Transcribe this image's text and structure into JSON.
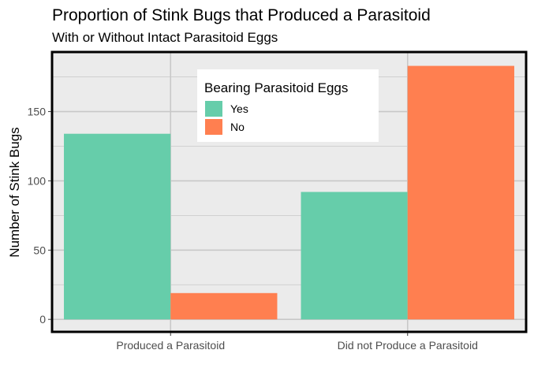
{
  "chart_data": {
    "type": "bar",
    "title": "Proportion of Stink Bugs that Produced a Parasitoid",
    "subtitle": "With or Without Intact Parasitoid Eggs",
    "xlabel": "",
    "ylabel": "Number of Stink Bugs",
    "categories": [
      "Produced a Parasitoid",
      "Did not Produce a Parasitoid"
    ],
    "series": [
      {
        "name": "Yes",
        "values": [
          134,
          92
        ],
        "color": "#66cdaa"
      },
      {
        "name": "No",
        "values": [
          19,
          183
        ],
        "color": "#ff7f50"
      }
    ],
    "yticks": [
      0,
      50,
      100,
      150
    ],
    "ylim": [
      -9,
      193
    ],
    "legend": {
      "title": "Bearing Parasitoid Eggs",
      "position": "top-center"
    },
    "grid": true,
    "panel_background": "#ebebeb",
    "grid_color": "#c8c8c8"
  }
}
